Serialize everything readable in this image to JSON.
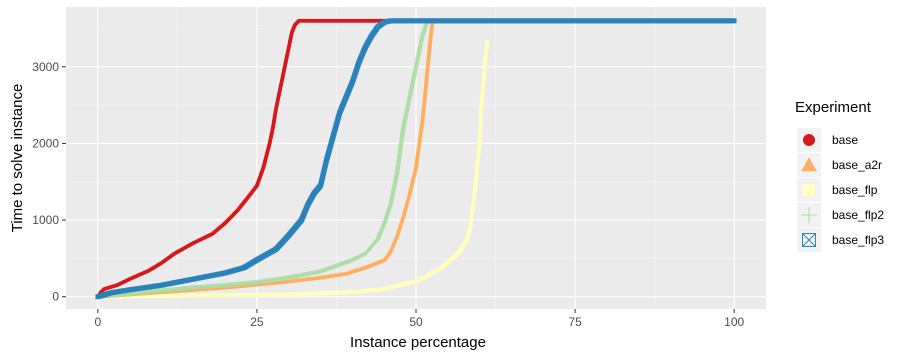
{
  "chart_data": {
    "type": "scatter",
    "title": "",
    "xlabel": "Instance percentage",
    "ylabel": "Time to solve instance",
    "xlim": [
      -5,
      105
    ],
    "ylim": [
      -160,
      3780
    ],
    "x_ticks": [
      0,
      25,
      50,
      75,
      100
    ],
    "y_ticks": [
      0,
      1000,
      2000,
      3000
    ],
    "grid": true,
    "background": "#ebebeb",
    "legend": {
      "title": "Experiment",
      "position": "right"
    },
    "series": [
      {
        "name": "base",
        "color": "#d7191c",
        "marker": "circle-filled",
        "anchors": [
          [
            0,
            0
          ],
          [
            0.5,
            60
          ],
          [
            1,
            100
          ],
          [
            3,
            150
          ],
          [
            5,
            230
          ],
          [
            8,
            340
          ],
          [
            10,
            440
          ],
          [
            12,
            560
          ],
          [
            15,
            700
          ],
          [
            18,
            820
          ],
          [
            20,
            960
          ],
          [
            22,
            1130
          ],
          [
            24,
            1340
          ],
          [
            25,
            1450
          ],
          [
            26,
            1680
          ],
          [
            27,
            2000
          ],
          [
            27.5,
            2200
          ],
          [
            28,
            2450
          ],
          [
            28.5,
            2650
          ],
          [
            29,
            2850
          ],
          [
            29.5,
            3050
          ],
          [
            30,
            3250
          ],
          [
            30.5,
            3450
          ],
          [
            31,
            3550
          ],
          [
            31.6,
            3600
          ],
          [
            100,
            3600
          ]
        ]
      },
      {
        "name": "base_a2r",
        "color": "#fdae61",
        "marker": "triangle-filled",
        "anchors": [
          [
            0,
            0
          ],
          [
            5,
            30
          ],
          [
            10,
            60
          ],
          [
            15,
            90
          ],
          [
            20,
            120
          ],
          [
            25,
            160
          ],
          [
            30,
            200
          ],
          [
            35,
            250
          ],
          [
            38,
            290
          ],
          [
            39,
            300
          ],
          [
            40,
            330
          ],
          [
            42,
            380
          ],
          [
            45,
            480
          ],
          [
            46,
            600
          ],
          [
            47,
            800
          ],
          [
            48,
            1050
          ],
          [
            49,
            1350
          ],
          [
            50,
            1700
          ],
          [
            51,
            2300
          ],
          [
            51.5,
            2700
          ],
          [
            52,
            3150
          ],
          [
            52.3,
            3400
          ],
          [
            52.6,
            3600
          ],
          [
            100,
            3600
          ]
        ]
      },
      {
        "name": "base_flp",
        "color": "#ffffbf",
        "marker": "square-filled",
        "anchors": [
          [
            0,
            0
          ],
          [
            10,
            10
          ],
          [
            20,
            20
          ],
          [
            30,
            30
          ],
          [
            40,
            60
          ],
          [
            45,
            100
          ],
          [
            50,
            200
          ],
          [
            52,
            280
          ],
          [
            54,
            380
          ],
          [
            56,
            520
          ],
          [
            57,
            600
          ],
          [
            58,
            750
          ],
          [
            58.5,
            900
          ],
          [
            59,
            1200
          ],
          [
            59.5,
            1600
          ],
          [
            60,
            2000
          ],
          [
            60.2,
            2400
          ],
          [
            60.5,
            2700
          ],
          [
            60.8,
            3000
          ],
          [
            61,
            3200
          ],
          [
            61.2,
            3320
          ]
        ]
      },
      {
        "name": "base_flp2",
        "color": "#abdda4",
        "marker": "plus",
        "anchors": [
          [
            0,
            0
          ],
          [
            5,
            40
          ],
          [
            10,
            80
          ],
          [
            15,
            120
          ],
          [
            20,
            150
          ],
          [
            25,
            190
          ],
          [
            30,
            250
          ],
          [
            35,
            330
          ],
          [
            38,
            420
          ],
          [
            40,
            480
          ],
          [
            42,
            560
          ],
          [
            44,
            750
          ],
          [
            45,
            950
          ],
          [
            46,
            1200
          ],
          [
            47,
            1600
          ],
          [
            48,
            2200
          ],
          [
            49,
            2600
          ],
          [
            50,
            3000
          ],
          [
            50.5,
            3200
          ],
          [
            51,
            3400
          ],
          [
            51.6,
            3550
          ],
          [
            52,
            3600
          ],
          [
            100,
            3600
          ]
        ]
      },
      {
        "name": "base_flp3",
        "color": "#2b83ba",
        "marker": "square-x",
        "anchors": [
          [
            0,
            0
          ],
          [
            2,
            50
          ],
          [
            5,
            90
          ],
          [
            10,
            150
          ],
          [
            15,
            230
          ],
          [
            20,
            310
          ],
          [
            23,
            380
          ],
          [
            25,
            480
          ],
          [
            28,
            620
          ],
          [
            30,
            800
          ],
          [
            32,
            1000
          ],
          [
            33,
            1200
          ],
          [
            34,
            1350
          ],
          [
            35,
            1450
          ],
          [
            36,
            1800
          ],
          [
            37,
            2100
          ],
          [
            38,
            2400
          ],
          [
            39,
            2600
          ],
          [
            40,
            2800
          ],
          [
            41,
            3050
          ],
          [
            42,
            3250
          ],
          [
            43,
            3400
          ],
          [
            44,
            3520
          ],
          [
            45,
            3580
          ],
          [
            46,
            3600
          ],
          [
            100,
            3600
          ]
        ]
      }
    ]
  }
}
